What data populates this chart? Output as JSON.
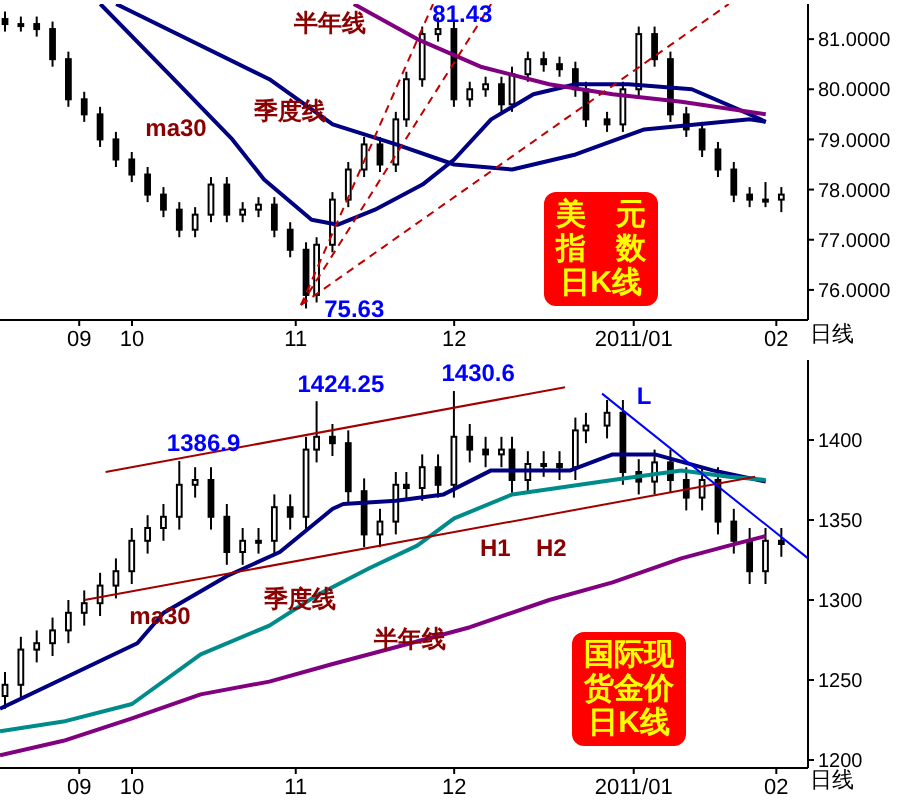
{
  "chart_data": [
    {
      "type": "candlestick",
      "title": "美元指数日K线",
      "x": [
        "2010-09-10",
        "2010-09-13",
        "2010-09-16",
        "2010-09-19",
        "2010-09-22",
        "2010-09-25",
        "2010-09-28",
        "2010-10-01",
        "2010-10-04",
        "2010-10-07",
        "2010-10-10",
        "2010-10-13",
        "2010-10-16",
        "2010-10-19",
        "2010-10-22",
        "2010-10-25",
        "2010-10-28",
        "2010-10-31",
        "2010-11-03",
        "2010-11-06",
        "2010-11-08",
        "2010-11-11",
        "2010-11-14",
        "2010-11-17",
        "2010-11-20",
        "2010-11-23",
        "2010-11-25",
        "2010-11-28",
        "2010-12-01",
        "2010-12-04",
        "2010-12-07",
        "2010-12-10",
        "2010-12-13",
        "2010-12-15",
        "2010-12-18",
        "2010-12-21",
        "2010-12-24",
        "2010-12-27",
        "2010-12-29",
        "2011-01-02",
        "2011-01-05",
        "2011-01-08",
        "2011-01-11",
        "2011-01-14",
        "2011-01-17",
        "2011-01-20",
        "2011-01-23",
        "2011-01-26",
        "2011-01-29",
        "2011-02-01",
        "2011-02-04"
      ],
      "ohlc": [
        [
          81.4,
          81.55,
          81.15,
          81.3
        ],
        [
          81.3,
          81.45,
          81.15,
          81.3
        ],
        [
          81.3,
          81.45,
          81.05,
          81.2
        ],
        [
          81.2,
          81.35,
          80.45,
          80.6
        ],
        [
          80.6,
          80.75,
          79.65,
          79.8
        ],
        [
          79.8,
          79.95,
          79.35,
          79.5
        ],
        [
          79.5,
          79.65,
          78.85,
          79.0
        ],
        [
          79.0,
          79.15,
          78.45,
          78.6
        ],
        [
          78.6,
          78.75,
          78.15,
          78.3
        ],
        [
          78.3,
          78.45,
          77.75,
          77.9
        ],
        [
          77.9,
          78.05,
          77.45,
          77.6
        ],
        [
          77.6,
          77.75,
          77.05,
          77.2
        ],
        [
          77.2,
          77.65,
          77.05,
          77.5
        ],
        [
          77.5,
          78.25,
          77.35,
          78.1
        ],
        [
          78.1,
          78.25,
          77.35,
          77.5
        ],
        [
          77.5,
          77.75,
          77.35,
          77.6
        ],
        [
          77.6,
          77.85,
          77.45,
          77.7
        ],
        [
          77.7,
          77.85,
          77.05,
          77.2
        ],
        [
          77.2,
          77.35,
          76.65,
          76.8
        ],
        [
          76.8,
          76.95,
          75.63,
          75.9
        ],
        [
          75.9,
          77.05,
          75.75,
          76.9
        ],
        [
          76.9,
          77.95,
          76.75,
          77.8
        ],
        [
          77.8,
          78.55,
          77.65,
          78.4
        ],
        [
          78.4,
          79.05,
          78.25,
          78.9
        ],
        [
          78.9,
          79.05,
          78.35,
          78.5
        ],
        [
          78.5,
          79.55,
          78.35,
          79.4
        ],
        [
          79.4,
          80.35,
          79.25,
          80.2
        ],
        [
          80.2,
          81.25,
          80.05,
          81.1
        ],
        [
          81.1,
          81.43,
          80.95,
          81.2
        ],
        [
          81.2,
          81.35,
          79.65,
          79.8
        ],
        [
          79.8,
          80.15,
          79.65,
          80.0
        ],
        [
          80.0,
          80.25,
          79.85,
          80.1
        ],
        [
          80.1,
          80.25,
          79.55,
          79.7
        ],
        [
          79.7,
          80.45,
          79.55,
          80.3
        ],
        [
          80.3,
          80.75,
          80.15,
          80.6
        ],
        [
          80.6,
          80.75,
          80.35,
          80.5
        ],
        [
          80.5,
          80.65,
          80.25,
          80.4
        ],
        [
          80.4,
          80.55,
          79.85,
          80.0
        ],
        [
          80.0,
          80.15,
          79.25,
          79.4
        ],
        [
          79.4,
          79.55,
          79.15,
          79.3
        ],
        [
          79.3,
          80.15,
          79.15,
          80.0
        ],
        [
          80.0,
          81.25,
          79.85,
          81.1
        ],
        [
          81.1,
          81.25,
          80.45,
          80.6
        ],
        [
          80.6,
          80.75,
          79.35,
          79.5
        ],
        [
          79.5,
          79.65,
          79.05,
          79.2
        ],
        [
          79.2,
          79.35,
          78.65,
          78.8
        ],
        [
          78.8,
          78.95,
          78.25,
          78.4
        ],
        [
          78.4,
          78.55,
          77.75,
          77.9
        ],
        [
          77.9,
          78.05,
          77.65,
          77.8
        ],
        [
          77.8,
          78.15,
          77.65,
          77.8
        ],
        [
          77.8,
          78.05,
          77.55,
          77.9
        ]
      ],
      "series": [
        {
          "type": "line",
          "name": "ma30",
          "color": "#000080",
          "x": [
            "2010-09-28",
            "2010-10-11",
            "2010-10-23",
            "2010-10-29",
            "2010-11-07",
            "2010-11-12",
            "2010-11-19",
            "2010-11-28",
            "2010-12-04",
            "2010-12-11",
            "2010-12-19",
            "2010-12-27",
            "2011-01-06",
            "2011-01-18",
            "2011-01-29",
            "2011-02-01"
          ],
          "values": [
            81.7,
            80.3,
            79.0,
            78.2,
            77.4,
            77.3,
            77.6,
            78.1,
            78.6,
            79.4,
            79.9,
            80.1,
            80.1,
            80.0,
            79.5,
            79.35
          ]
        },
        {
          "type": "line",
          "name": "季度线",
          "color": "#000080",
          "x": [
            "2010-10-01",
            "2010-10-30",
            "2010-11-11",
            "2010-11-23",
            "2010-12-04",
            "2010-12-15",
            "2010-12-27",
            "2011-01-09",
            "2011-01-29",
            "2011-02-01"
          ],
          "values": [
            81.7,
            80.2,
            79.3,
            78.9,
            78.5,
            78.4,
            78.7,
            79.2,
            79.4,
            79.35
          ]
        },
        {
          "type": "line",
          "name": "半年线",
          "color": "#800080",
          "x": [
            "2010-11-15",
            "2010-11-27",
            "2010-12-09",
            "2010-12-22",
            "2011-01-03",
            "2011-01-16",
            "2011-02-01"
          ],
          "values": [
            81.7,
            81.0,
            80.45,
            80.1,
            79.9,
            79.75,
            79.5
          ]
        },
        {
          "type": "line",
          "color": "#c00000",
          "line_style": "dashed",
          "x": [
            "2010-11-05",
            "2010-11-30"
          ],
          "values": [
            75.7,
            81.7
          ]
        },
        {
          "type": "line",
          "color": "#c00000",
          "line_style": "dashed",
          "x": [
            "2010-11-05",
            "2010-12-11"
          ],
          "values": [
            75.7,
            81.7
          ]
        },
        {
          "type": "line",
          "color": "#c00000",
          "line_style": "dashed",
          "x": [
            "2010-11-05",
            "2011-01-25"
          ],
          "values": [
            75.7,
            81.7
          ]
        }
      ],
      "xlim": [
        "2010-09-09",
        "2011-02-09"
      ],
      "ylim": [
        75.4,
        81.7
      ],
      "xticks": [
        {
          "value": "2010-09-24",
          "label": "09"
        },
        {
          "value": "2010-10-04",
          "label": "10"
        },
        {
          "value": "2010-11-04",
          "label": "11"
        },
        {
          "value": "2010-12-04",
          "label": "12"
        },
        {
          "value": "2011-01-07",
          "label": "2011/01"
        },
        {
          "value": "2011-02-03",
          "label": "02"
        }
      ],
      "yticks": [
        {
          "value": 76,
          "label": "76.0000"
        },
        {
          "value": 77,
          "label": "77.0000"
        },
        {
          "value": 78,
          "label": "78.0000"
        },
        {
          "value": 79,
          "label": "79.0000"
        },
        {
          "value": 80,
          "label": "80.0000"
        },
        {
          "value": 81,
          "label": "81.0000"
        }
      ],
      "annotations": [
        {
          "text": "81.43",
          "x": "2010-12-01",
          "y": 81.43
        },
        {
          "text": "75.63",
          "x": "2010-11-06",
          "y": 75.63
        },
        "日线"
      ]
    },
    {
      "type": "candlestick",
      "title": "国际现货金价日K线",
      "x": [
        "2010-09-10",
        "2010-09-13",
        "2010-09-16",
        "2010-09-19",
        "2010-09-22",
        "2010-09-25",
        "2010-09-28",
        "2010-10-01",
        "2010-10-04",
        "2010-10-07",
        "2010-10-10",
        "2010-10-13",
        "2010-10-16",
        "2010-10-19",
        "2010-10-22",
        "2010-10-25",
        "2010-10-28",
        "2010-10-31",
        "2010-11-03",
        "2010-11-06",
        "2010-11-08",
        "2010-11-11",
        "2010-11-14",
        "2010-11-17",
        "2010-11-20",
        "2010-11-23",
        "2010-11-25",
        "2010-11-28",
        "2010-12-01",
        "2010-12-04",
        "2010-12-07",
        "2010-12-10",
        "2010-12-13",
        "2010-12-15",
        "2010-12-18",
        "2010-12-21",
        "2010-12-24",
        "2010-12-27",
        "2010-12-29",
        "2011-01-02",
        "2011-01-05",
        "2011-01-08",
        "2011-01-11",
        "2011-01-14",
        "2011-01-17",
        "2011-01-20",
        "2011-01-23",
        "2011-01-26",
        "2011-01-29",
        "2011-02-01",
        "2011-02-04"
      ],
      "ohlc": [
        [
          1240,
          1255,
          1232,
          1247
        ],
        [
          1247,
          1277,
          1239,
          1269
        ],
        [
          1269,
          1281,
          1261,
          1273
        ],
        [
          1273,
          1289,
          1265,
          1281
        ],
        [
          1281,
          1300,
          1273,
          1292
        ],
        [
          1292,
          1306,
          1284,
          1298
        ],
        [
          1298,
          1317,
          1290,
          1309
        ],
        [
          1309,
          1326,
          1301,
          1318
        ],
        [
          1318,
          1345,
          1310,
          1337
        ],
        [
          1337,
          1353,
          1329,
          1345
        ],
        [
          1345,
          1360,
          1337,
          1352
        ],
        [
          1352,
          1386.9,
          1344,
          1372
        ],
        [
          1372,
          1383,
          1364,
          1375
        ],
        [
          1375,
          1383,
          1344,
          1352
        ],
        [
          1352,
          1360,
          1322,
          1330
        ],
        [
          1330,
          1345,
          1322,
          1337
        ],
        [
          1337,
          1345,
          1329,
          1337
        ],
        [
          1337,
          1366,
          1329,
          1358
        ],
        [
          1358,
          1366,
          1344,
          1352
        ],
        [
          1352,
          1402,
          1344,
          1394
        ],
        [
          1394,
          1424.25,
          1386,
          1402
        ],
        [
          1402,
          1410,
          1390,
          1398
        ],
        [
          1398,
          1406,
          1360,
          1368
        ],
        [
          1368,
          1376,
          1333,
          1341
        ],
        [
          1341,
          1357,
          1333,
          1349
        ],
        [
          1349,
          1380,
          1341,
          1372
        ],
        [
          1372,
          1380,
          1362,
          1370
        ],
        [
          1370,
          1391,
          1362,
          1383
        ],
        [
          1383,
          1391,
          1364,
          1372
        ],
        [
          1372,
          1430.6,
          1364,
          1402
        ],
        [
          1402,
          1410,
          1386,
          1394
        ],
        [
          1394,
          1402,
          1383,
          1391
        ],
        [
          1391,
          1402,
          1383,
          1394
        ],
        [
          1394,
          1402,
          1367,
          1375
        ],
        [
          1375,
          1393,
          1367,
          1385
        ],
        [
          1385,
          1393,
          1377,
          1385
        ],
        [
          1385,
          1393,
          1375,
          1383
        ],
        [
          1383,
          1414,
          1375,
          1406
        ],
        [
          1406,
          1417,
          1398,
          1409
        ],
        [
          1409,
          1425,
          1401,
          1417
        ],
        [
          1417,
          1425,
          1372,
          1380
        ],
        [
          1380,
          1388,
          1366,
          1374
        ],
        [
          1374,
          1394,
          1366,
          1386
        ],
        [
          1386,
          1394,
          1367,
          1375
        ],
        [
          1375,
          1383,
          1356,
          1364
        ],
        [
          1364,
          1383,
          1356,
          1375
        ],
        [
          1375,
          1383,
          1341,
          1349
        ],
        [
          1349,
          1357,
          1329,
          1337
        ],
        [
          1337,
          1345,
          1310,
          1318
        ],
        [
          1318,
          1345,
          1310,
          1337
        ],
        [
          1337,
          1345,
          1327,
          1335
        ]
      ],
      "series": [
        {
          "type": "line",
          "name": "ma30",
          "color": "#000080",
          "x": [
            "2010-09-09",
            "2010-10-05",
            "2010-10-10",
            "2010-10-22",
            "2010-11-01",
            "2010-11-11",
            "2010-11-13",
            "2010-11-23",
            "2010-12-02",
            "2010-12-11",
            "2010-12-26",
            "2011-01-03",
            "2011-01-11",
            "2011-01-22",
            "2011-02-01"
          ],
          "values": [
            1232,
            1273,
            1292,
            1315,
            1330,
            1357,
            1360,
            1362,
            1366,
            1381,
            1381,
            1391,
            1391,
            1381,
            1374
          ]
        },
        {
          "type": "line",
          "name": "季度线",
          "color": "#008b8b",
          "x": [
            "2010-09-09",
            "2010-09-21",
            "2010-10-04",
            "2010-10-17",
            "2010-10-30",
            "2010-11-08",
            "2010-11-18",
            "2010-11-27",
            "2010-12-04",
            "2010-12-15",
            "2011-01-03",
            "2011-01-16",
            "2011-01-25",
            "2011-02-01"
          ],
          "values": [
            1218,
            1224,
            1235,
            1266,
            1284,
            1303,
            1320,
            1334,
            1351,
            1366,
            1375,
            1381,
            1377,
            1375
          ]
        },
        {
          "type": "line",
          "name": "半年线",
          "color": "#800080",
          "x": [
            "2010-09-09",
            "2010-09-21",
            "2010-10-04",
            "2010-10-17",
            "2010-10-30",
            "2010-11-11",
            "2010-11-19",
            "2010-12-07",
            "2010-12-22",
            "2011-01-03",
            "2011-01-16",
            "2011-01-25",
            "2011-02-01"
          ],
          "values": [
            1203,
            1212,
            1226,
            1241,
            1249,
            1260,
            1267,
            1283,
            1300,
            1311,
            1326,
            1334,
            1340
          ]
        },
        {
          "type": "line",
          "color": "#a00000",
          "x": [
            "2010-09-29",
            "2010-12-25"
          ],
          "values": [
            1380,
            1433
          ]
        },
        {
          "type": "line",
          "color": "#a00000",
          "x": [
            "2010-09-25",
            "2011-01-30"
          ],
          "values": [
            1300,
            1377
          ]
        },
        {
          "type": "line",
          "name": "L",
          "color": "#0000ff",
          "x": [
            "2011-01-01",
            "2011-02-09"
          ],
          "values": [
            1429,
            1326
          ]
        }
      ],
      "xlim": [
        "2010-09-09",
        "2011-02-09"
      ],
      "ylim": [
        1195,
        1450
      ],
      "xticks": [
        {
          "value": "2010-09-24",
          "label": "09"
        },
        {
          "value": "2010-10-04",
          "label": "10"
        },
        {
          "value": "2010-11-04",
          "label": "11"
        },
        {
          "value": "2010-12-04",
          "label": "12"
        },
        {
          "value": "2011-01-07",
          "label": "2011/01"
        },
        {
          "value": "2011-02-03",
          "label": "02"
        }
      ],
      "yticks": [
        1200,
        1250,
        1300,
        1350,
        1400
      ],
      "annotations": [
        {
          "text": "1386.9",
          "x": "2010-10-13",
          "y": 1386.9
        },
        {
          "text": "1424.25",
          "x": "2010-11-08",
          "y": 1424.25
        },
        {
          "text": "1430.6",
          "x": "2010-12-04",
          "y": 1430.6
        },
        "H1",
        "H2",
        "日线"
      ]
    }
  ]
}
